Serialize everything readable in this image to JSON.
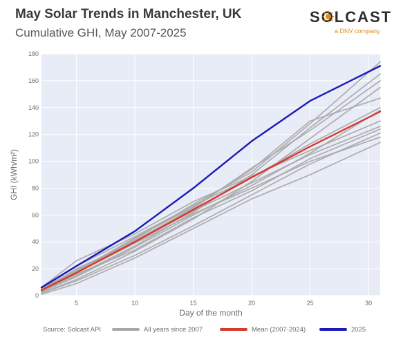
{
  "header": {
    "title": "May Solar Trends in Manchester, UK",
    "subtitle": "Cumulative GHI, May 2007-2025"
  },
  "logo": {
    "word": "SOLCAST",
    "tagline": "a DNV company",
    "icon": "sun-icon",
    "color": "#e08a1e"
  },
  "legend": {
    "source": "Source: Solcast API",
    "items": [
      {
        "label": "All years since 2007",
        "color": "#a9a9a9"
      },
      {
        "label": "Mean (2007-2024)",
        "color": "#d63a2c"
      },
      {
        "label": "2025",
        "color": "#1a1ab8"
      }
    ]
  },
  "chart_data": {
    "type": "line",
    "xlabel": "Day of the month",
    "ylabel": "GHI (kWh/m²)",
    "xlim": [
      2,
      31
    ],
    "ylim": [
      0,
      180
    ],
    "x_ticks": [
      5,
      10,
      15,
      20,
      25,
      30
    ],
    "y_ticks": [
      0,
      20,
      40,
      60,
      80,
      100,
      120,
      140,
      160,
      180
    ],
    "grid": true,
    "plot_background": "#e8ecf7",
    "legend_placement": "bottom",
    "x": [
      2,
      5,
      10,
      15,
      20,
      25,
      31
    ],
    "series": [
      {
        "name": "2025",
        "color": "#1a1ab8",
        "values": [
          6,
          22,
          48,
          80,
          115,
          145,
          171
        ]
      },
      {
        "name": "Mean (2007-2024)",
        "color": "#d63a2c",
        "values": [
          4,
          17,
          40,
          64,
          88,
          111,
          137
        ]
      },
      {
        "name": "All years since 2007",
        "color": "#a9a9a9",
        "values": [
          5,
          19,
          42,
          68,
          92,
          128,
          174
        ]
      },
      {
        "name": "All years since 2007",
        "color": "#a9a9a9",
        "values": [
          3,
          15,
          37,
          62,
          90,
          125,
          165
        ]
      },
      {
        "name": "All years since 2007",
        "color": "#a9a9a9",
        "values": [
          4,
          18,
          41,
          65,
          95,
          123,
          160
        ]
      },
      {
        "name": "All years since 2007",
        "color": "#a9a9a9",
        "values": [
          2,
          12,
          33,
          57,
          85,
          117,
          155
        ]
      },
      {
        "name": "All years since 2007",
        "color": "#a9a9a9",
        "values": [
          5,
          22,
          44,
          67,
          88,
          113,
          140
        ]
      },
      {
        "name": "All years since 2007",
        "color": "#a9a9a9",
        "values": [
          3,
          14,
          36,
          60,
          82,
          106,
          138
        ]
      },
      {
        "name": "All years since 2007",
        "color": "#a9a9a9",
        "values": [
          6,
          26,
          46,
          70,
          89,
          108,
          130
        ]
      },
      {
        "name": "All years since 2007",
        "color": "#a9a9a9",
        "values": [
          4,
          16,
          34,
          58,
          78,
          102,
          124
        ]
      },
      {
        "name": "All years since 2007",
        "color": "#a9a9a9",
        "values": [
          2,
          11,
          30,
          52,
          75,
          98,
          121
        ]
      },
      {
        "name": "All years since 2007",
        "color": "#a9a9a9",
        "values": [
          3,
          17,
          39,
          61,
          80,
          100,
          118
        ]
      },
      {
        "name": "All years since 2007",
        "color": "#a9a9a9",
        "values": [
          1,
          9,
          28,
          50,
          72,
          90,
          114
        ]
      },
      {
        "name": "All years since 2007",
        "color": "#a9a9a9",
        "values": [
          4,
          20,
          40,
          63,
          84,
          105,
          126
        ]
      },
      {
        "name": "All years since 2007",
        "color": "#a9a9a9",
        "values": [
          5,
          18,
          43,
          66,
          94,
          130,
          147
        ]
      }
    ]
  }
}
